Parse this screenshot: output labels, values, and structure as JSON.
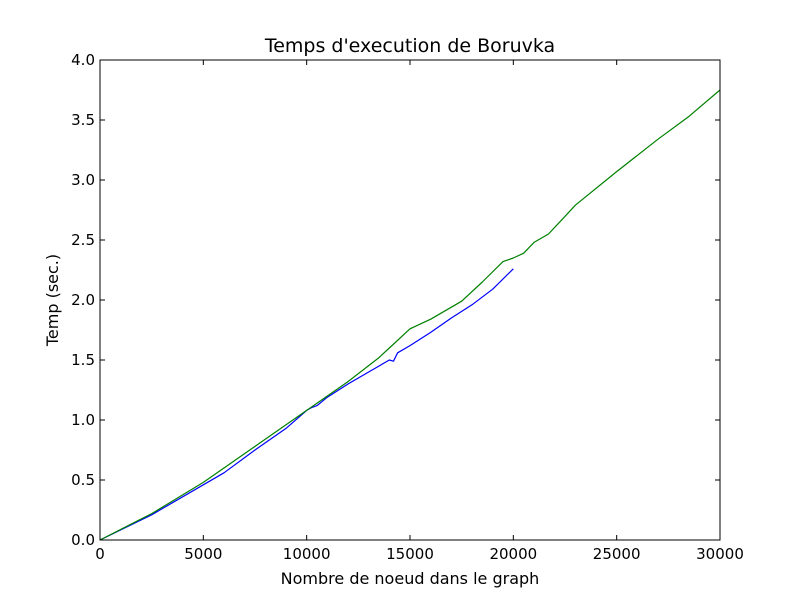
{
  "chart_data": {
    "type": "line",
    "title": "Temps d'execution de Boruvka",
    "xlabel": "Nombre de noeud dans le graph",
    "ylabel": "Temp (sec.)",
    "xlim": [
      0,
      30000
    ],
    "ylim": [
      0.0,
      4.0
    ],
    "xticks": [
      0,
      5000,
      10000,
      15000,
      20000,
      25000,
      30000
    ],
    "xtick_labels": [
      "0",
      "5000",
      "10000",
      "15000",
      "20000",
      "25000",
      "30000"
    ],
    "yticks": [
      0.0,
      0.5,
      1.0,
      1.5,
      2.0,
      2.5,
      3.0,
      3.5,
      4.0
    ],
    "ytick_labels": [
      "0.0",
      "0.5",
      "1.0",
      "1.5",
      "2.0",
      "2.5",
      "3.0",
      "3.5",
      "4.0"
    ],
    "grid": false,
    "series": [
      {
        "color": "#0000ff",
        "points": [
          [
            0,
            0.0
          ],
          [
            2500,
            0.21
          ],
          [
            5000,
            0.46
          ],
          [
            6000,
            0.56
          ],
          [
            7500,
            0.75
          ],
          [
            9000,
            0.93
          ],
          [
            10000,
            1.08
          ],
          [
            10200,
            1.1
          ],
          [
            10500,
            1.12
          ],
          [
            11000,
            1.19
          ],
          [
            12000,
            1.3
          ],
          [
            13000,
            1.4
          ],
          [
            14000,
            1.5
          ],
          [
            14200,
            1.49
          ],
          [
            14400,
            1.56
          ],
          [
            15000,
            1.62
          ],
          [
            16000,
            1.73
          ],
          [
            17000,
            1.85
          ],
          [
            18000,
            1.96
          ],
          [
            19000,
            2.09
          ],
          [
            20000,
            2.26
          ]
        ]
      },
      {
        "color": "#008000",
        "points": [
          [
            0,
            0.0
          ],
          [
            2500,
            0.22
          ],
          [
            5000,
            0.48
          ],
          [
            7500,
            0.78
          ],
          [
            10000,
            1.08
          ],
          [
            12000,
            1.32
          ],
          [
            13500,
            1.52
          ],
          [
            14000,
            1.6
          ],
          [
            15000,
            1.76
          ],
          [
            16000,
            1.84
          ],
          [
            17500,
            1.99
          ],
          [
            18500,
            2.15
          ],
          [
            19500,
            2.32
          ],
          [
            20000,
            2.35
          ],
          [
            20500,
            2.39
          ],
          [
            21000,
            2.48
          ],
          [
            21700,
            2.55
          ],
          [
            22300,
            2.66
          ],
          [
            23000,
            2.79
          ],
          [
            25000,
            3.07
          ],
          [
            27000,
            3.34
          ],
          [
            28500,
            3.53
          ],
          [
            28700,
            3.56
          ],
          [
            30000,
            3.75
          ]
        ]
      }
    ]
  }
}
